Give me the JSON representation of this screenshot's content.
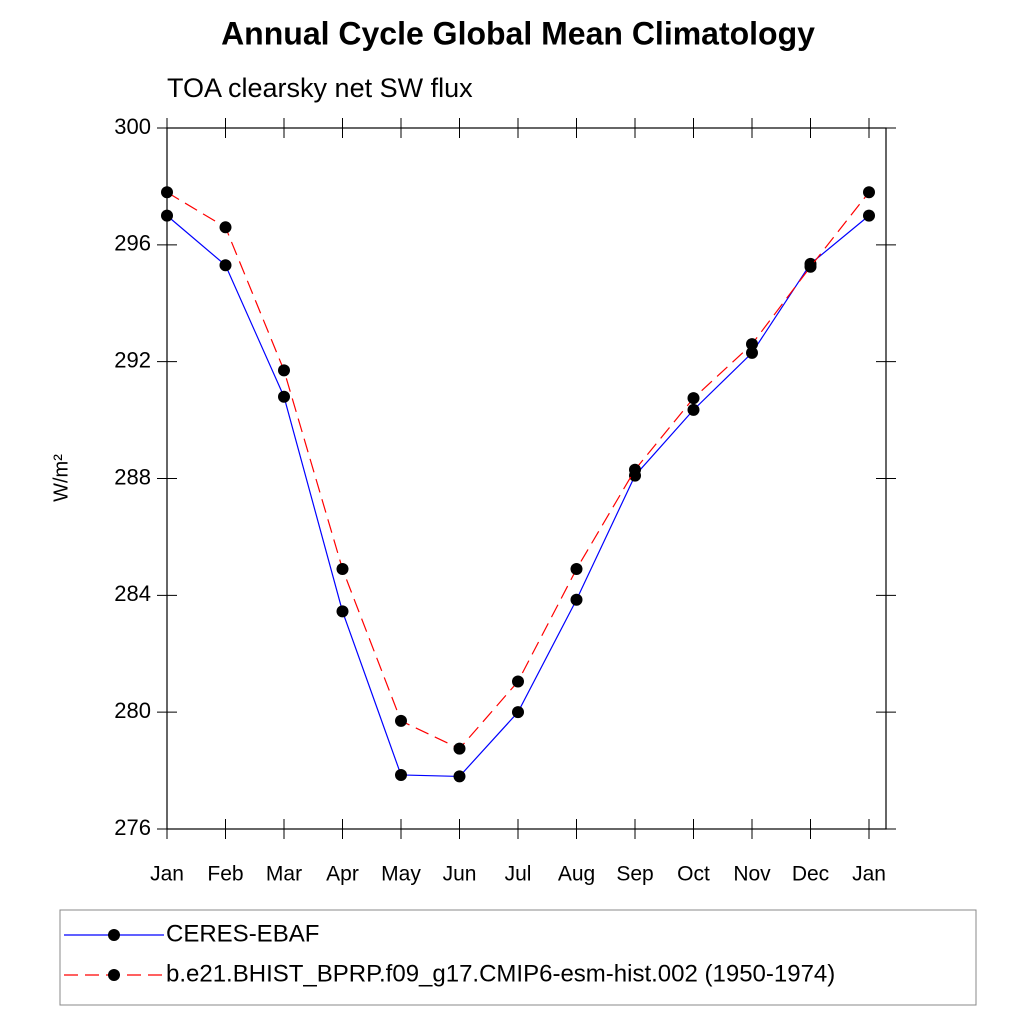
{
  "chart_data": {
    "type": "line",
    "title": "Annual Cycle Global Mean Climatology",
    "subtitle": "TOA clearsky net SW flux",
    "y_label": "W/m²",
    "categories": [
      "Jan",
      "Feb",
      "Mar",
      "Apr",
      "May",
      "Jun",
      "Jul",
      "Aug",
      "Sep",
      "Oct",
      "Nov",
      "Dec",
      "Jan"
    ],
    "series": [
      {
        "name": "CERES-EBAF",
        "color": "#0000ff",
        "dash": false,
        "values": [
          297.0,
          295.3,
          290.8,
          283.45,
          277.85,
          277.8,
          280.0,
          283.85,
          288.1,
          290.35,
          292.3,
          295.35,
          297.0
        ]
      },
      {
        "name": "b.e21.BHIST_BPRP.f09_g17.CMIP6-esm-hist.002 (1950-1974)",
        "color": "#ff0000",
        "dash": true,
        "values": [
          297.8,
          296.6,
          291.7,
          284.9,
          279.7,
          278.75,
          281.05,
          284.9,
          288.3,
          290.75,
          292.6,
          295.25,
          297.8
        ]
      }
    ],
    "ylim": [
      276,
      300
    ],
    "yticks": [
      276,
      280,
      284,
      288,
      292,
      296,
      300
    ],
    "grid": false
  }
}
